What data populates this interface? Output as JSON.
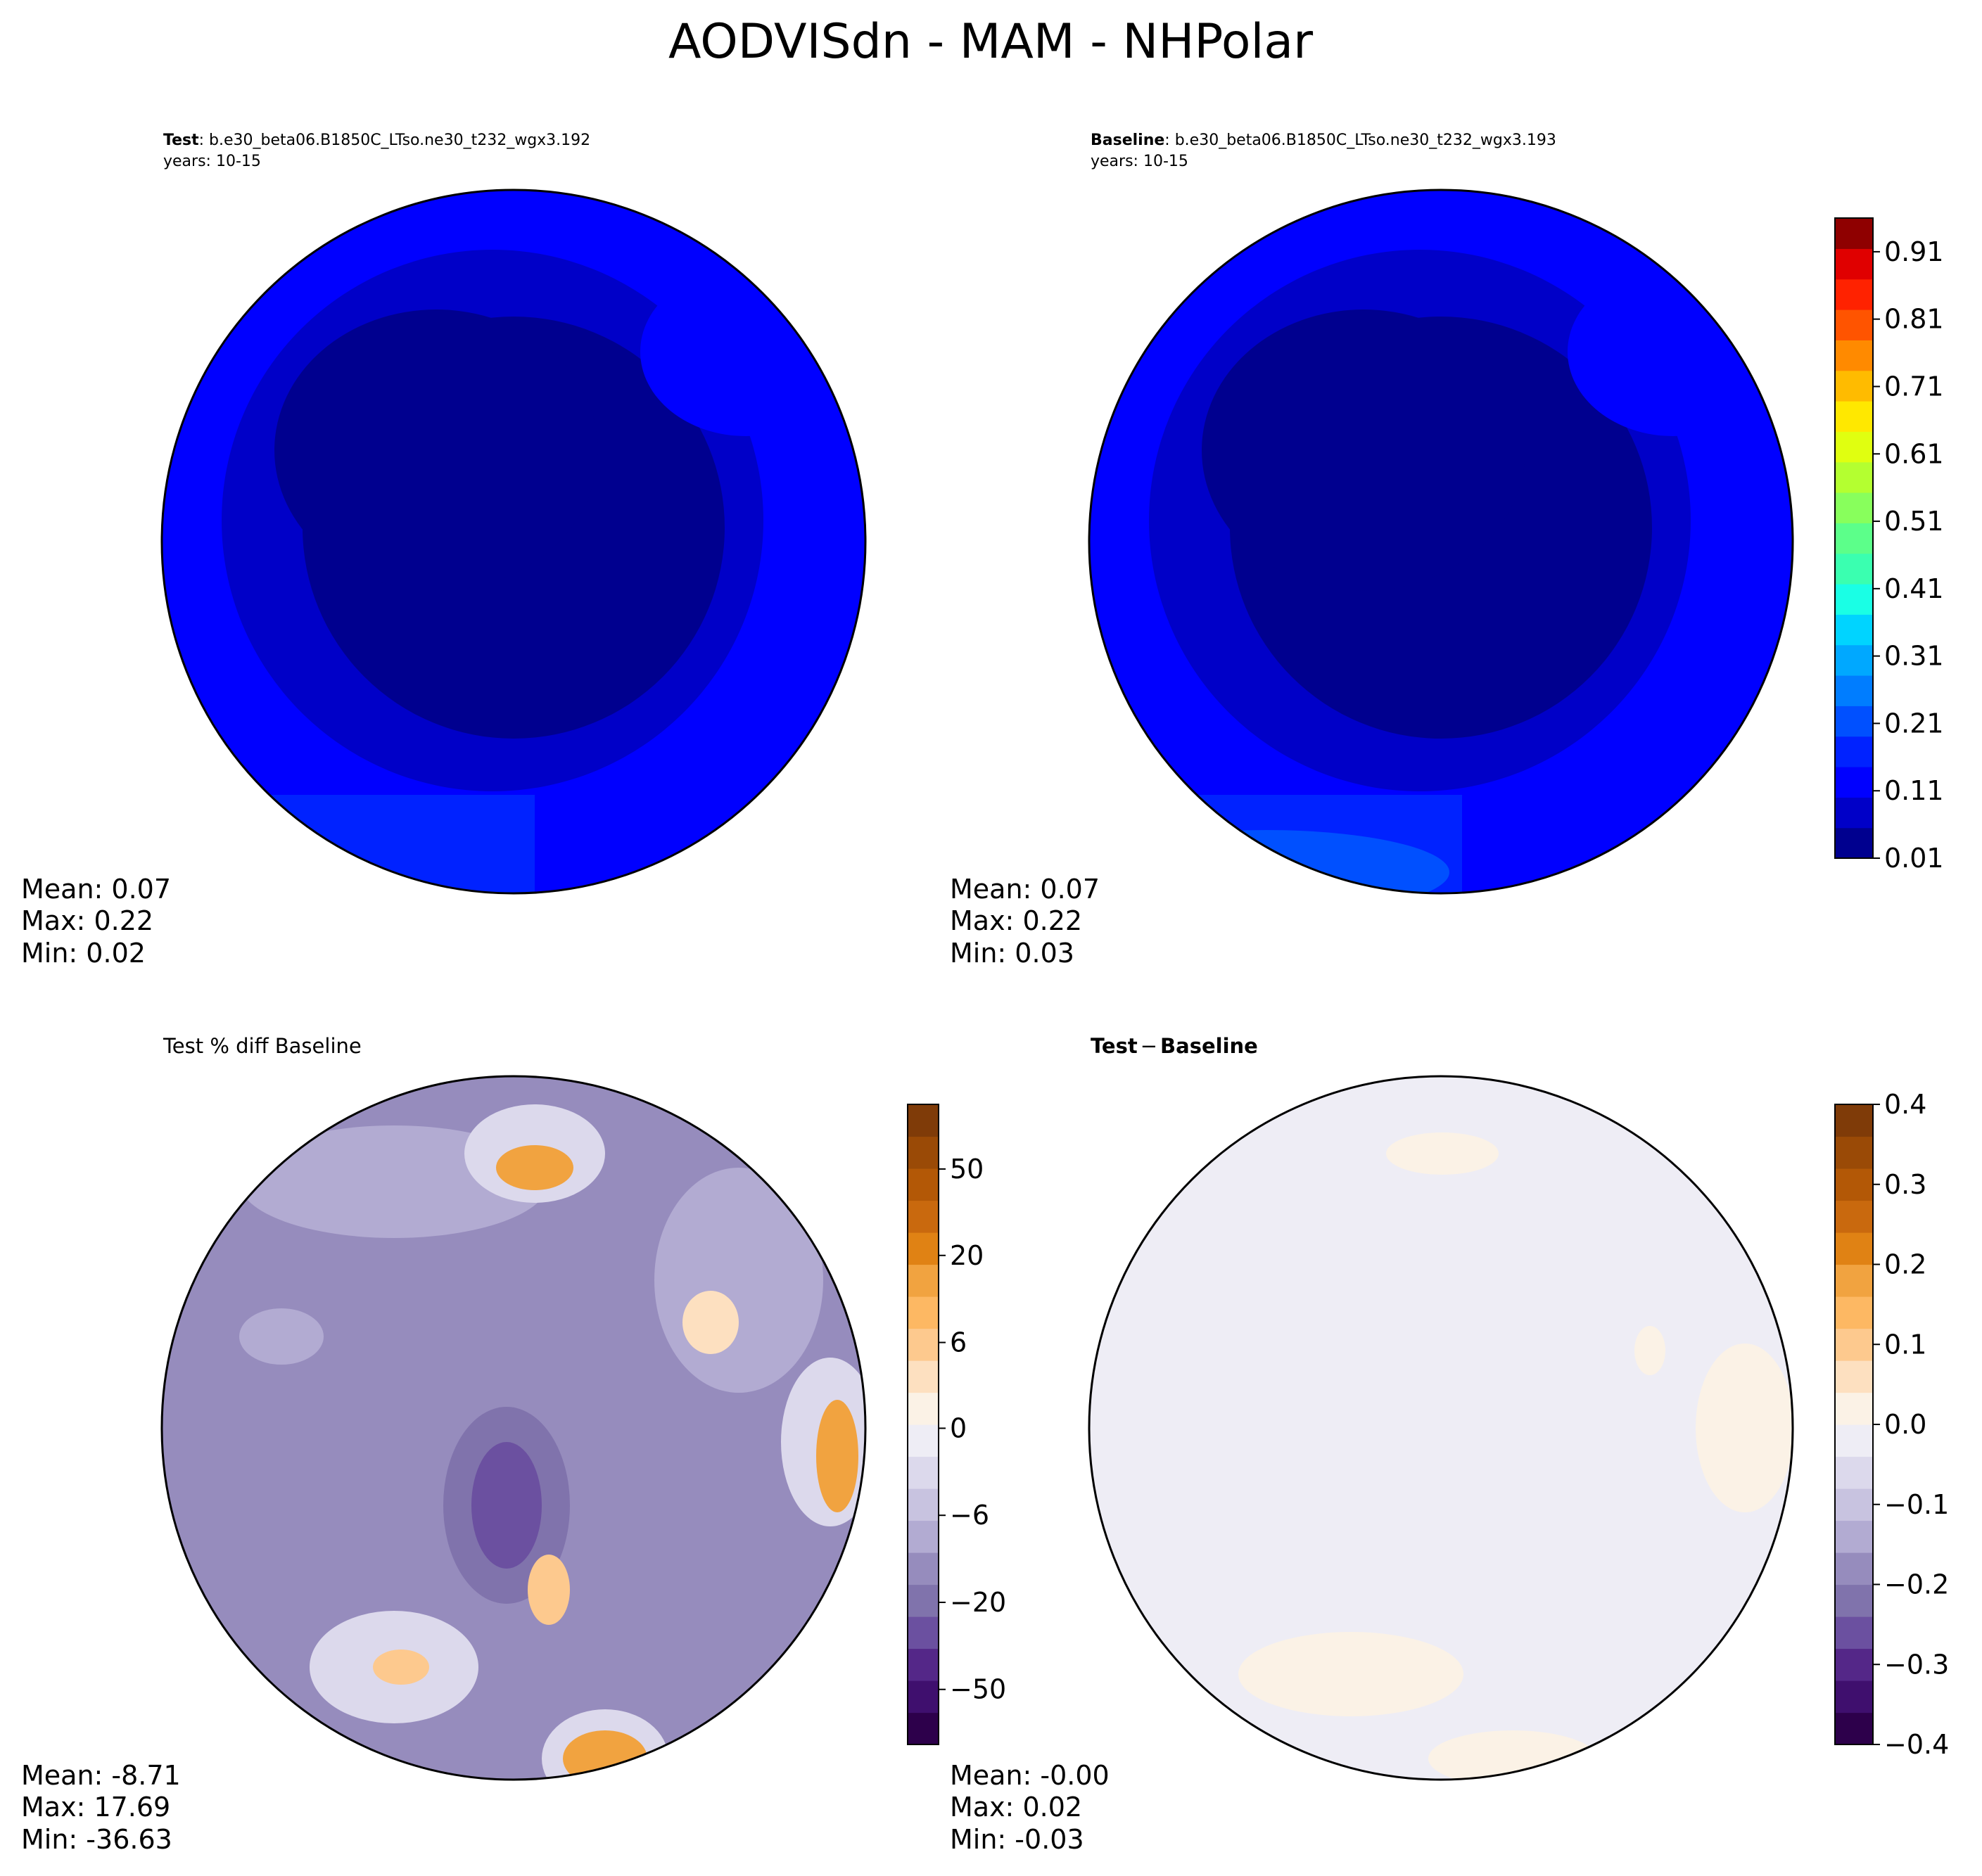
{
  "figure_title": "AODVISdn - MAM - NHPolar",
  "panels": {
    "test": {
      "label": "Test",
      "case": ": b.e30_beta06.B1850C_LTso.ne30_t232_wgx3.192",
      "years": "years: 10-15",
      "stats": {
        "mean": "Mean:  0.07",
        "max": "Max:  0.22",
        "min": "Min:  0.02"
      }
    },
    "baseline": {
      "label": "Baseline",
      "case": ": b.e30_beta06.B1850C_LTso.ne30_t232_wgx3.193",
      "years": "years: 10-15",
      "stats": {
        "mean": "Mean:  0.07",
        "max": "Max:  0.22",
        "min": "Min:  0.03"
      }
    },
    "pctdiff": {
      "title": "Test % diff Baseline",
      "stats": {
        "mean": "Mean: -8.71",
        "max": "Max: 17.69",
        "min": "Min: -36.63"
      }
    },
    "diff": {
      "title_a": "Test",
      "title_op": "−",
      "title_b": "Baseline",
      "stats": {
        "mean": "Mean: -0.00",
        "max": "Max:  0.02",
        "min": "Min: -0.03"
      }
    }
  },
  "chart_data": [
    {
      "type": "heatmap",
      "name": "Test",
      "projection": "north-polar-stereographic",
      "mean": 0.07,
      "max": 0.22,
      "min": 0.02,
      "colorbar_shared_with": "Baseline"
    },
    {
      "type": "heatmap",
      "name": "Baseline",
      "projection": "north-polar-stereographic",
      "mean": 0.07,
      "max": 0.22,
      "min": 0.03,
      "colorbar": {
        "levels": [
          0.01,
          0.06,
          0.11,
          0.16,
          0.21,
          0.26,
          0.31,
          0.36,
          0.41,
          0.46,
          0.51,
          0.56,
          0.61,
          0.66,
          0.71,
          0.76,
          0.81,
          0.86,
          0.91,
          0.96
        ],
        "ticks": [
          "0.01",
          "0.11",
          "0.21",
          "0.31",
          "0.41",
          "0.51",
          "0.61",
          "0.71",
          "0.81",
          "0.91"
        ],
        "colors": [
          "#00008f",
          "#0000c8",
          "#0000ff",
          "#0022ff",
          "#0050ff",
          "#007dff",
          "#00a8ff",
          "#00d4ff",
          "#1affe5",
          "#3affb0",
          "#5cff8a",
          "#88ff5c",
          "#b4ff30",
          "#e0ff10",
          "#ffe800",
          "#ffbb00",
          "#ff8a00",
          "#ff5400",
          "#ff2200",
          "#e00000",
          "#8f0000"
        ]
      }
    },
    {
      "type": "heatmap",
      "name": "Test % diff Baseline",
      "projection": "north-polar-stereographic",
      "mean": -8.71,
      "max": 17.69,
      "min": -36.63,
      "colorbar": {
        "ticks": [
          "50",
          "20",
          "6",
          "0",
          "−6",
          "−20",
          "−50"
        ],
        "colors": [
          "#2d004b",
          "#3f0f6e",
          "#542788",
          "#6b50a0",
          "#8073ac",
          "#968cbd",
          "#b2abd2",
          "#c8c3e0",
          "#dcd9ec",
          "#eeedf5",
          "#fbf2e6",
          "#fde0c0",
          "#fdc98e",
          "#fdb863",
          "#f1a340",
          "#e08214",
          "#c9690e",
          "#b35806",
          "#9a4a06",
          "#7f3b08"
        ]
      }
    },
    {
      "type": "heatmap",
      "name": "Test − Baseline",
      "projection": "north-polar-stereographic",
      "mean": -0.0,
      "max": 0.02,
      "min": -0.03,
      "colorbar": {
        "range": [
          -0.4,
          0.4
        ],
        "ticks": [
          "0.4",
          "0.3",
          "0.2",
          "0.1",
          "0.0",
          "−0.1",
          "−0.2",
          "−0.3",
          "−0.4"
        ],
        "colors": [
          "#2d004b",
          "#3f0f6e",
          "#542788",
          "#6b50a0",
          "#8073ac",
          "#968cbd",
          "#b2abd2",
          "#c8c3e0",
          "#dcd9ec",
          "#eeedf5",
          "#fbf2e6",
          "#fde0c0",
          "#fdc98e",
          "#fdb863",
          "#f1a340",
          "#e08214",
          "#c9690e",
          "#b35806",
          "#9a4a06",
          "#7f3b08"
        ]
      }
    }
  ]
}
